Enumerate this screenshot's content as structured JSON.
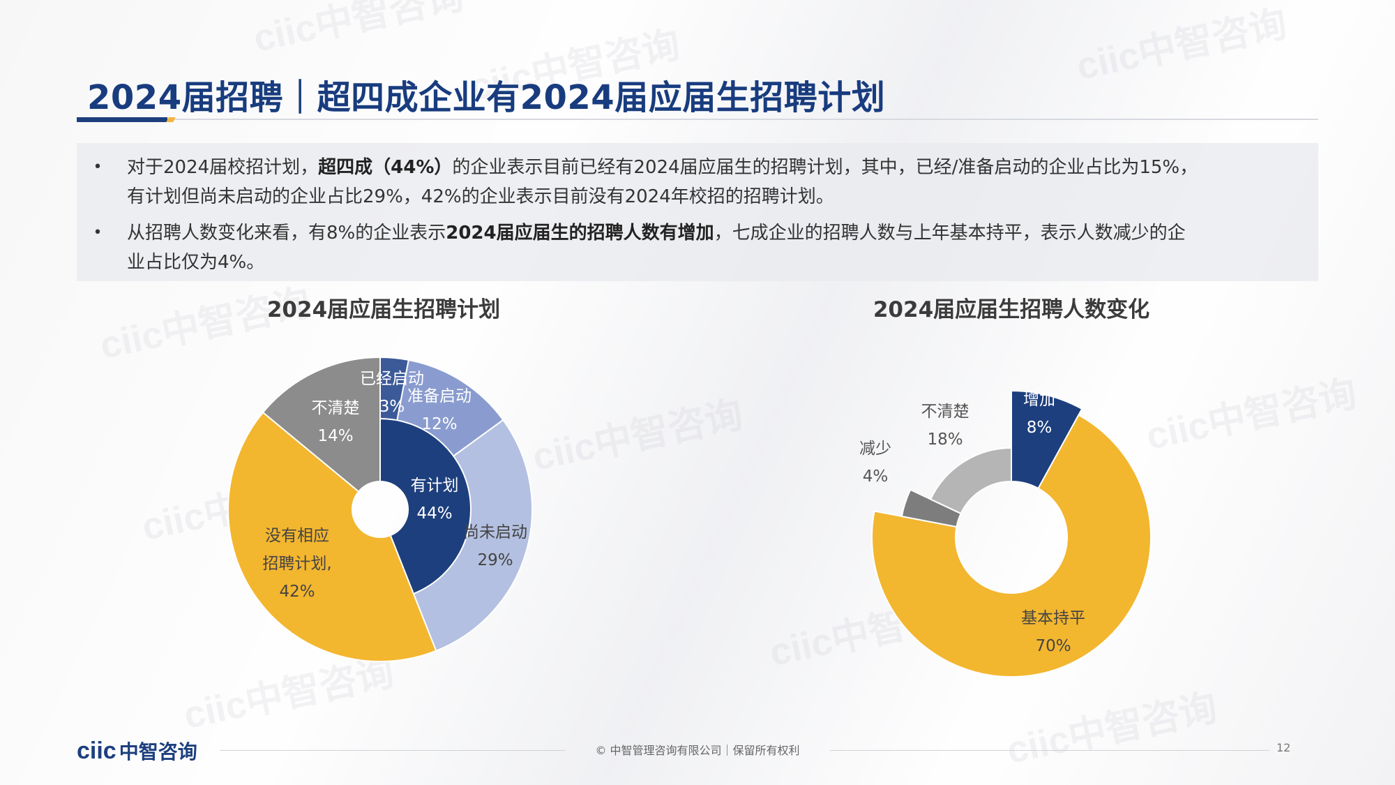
{
  "slide": {
    "title": "2024届招聘｜超四成企业有2024届应届生招聘计划",
    "bullets": [
      {
        "line1_pre": "对于2024届校招计划，",
        "line1_bold": "超四成（44%）",
        "line1_post": "的企业表示目前已经有2024届应届生的招聘计划，其中，已经/准备启动的企业占比为15%，",
        "line2": "有计划但尚未启动的企业占比29%，42%的企业表示目前没有2024年校招的招聘计划。"
      },
      {
        "line1_pre": "从招聘人数变化来看，有8%的企业表示",
        "line1_bold": "2024届应届生的招聘人数有增加",
        "line1_post": "，七成企业的招聘人数与上年基本持平，表示人数减少的企",
        "line2": "业占比仅为4%。"
      }
    ],
    "bullet_symbol": "•"
  },
  "chart_data": [
    {
      "type": "pie",
      "title": "2024届应届生招聘计划",
      "inner_ring": [
        {
          "label": "有计划",
          "value": 44,
          "color": "#1d3f7d"
        },
        {
          "label": "没有相应招聘计划",
          "value": 42,
          "color": "#f3b62f"
        },
        {
          "label": "不清楚",
          "value": 14,
          "color": "#8c8c8c"
        }
      ],
      "outer_ring": [
        {
          "label": "已经启动",
          "value": 3,
          "color": "#3c5a98"
        },
        {
          "label": "准备启动",
          "value": 12,
          "color": "#8a9ccf"
        },
        {
          "label": "尚未启动",
          "value": 29,
          "color": "#b4c0e1"
        }
      ],
      "labels": {
        "plan": [
          "有计划",
          "44%"
        ],
        "noplan": [
          "没有相应",
          "招聘计划,",
          "42%"
        ],
        "unclear": [
          "不清楚",
          "14%"
        ],
        "started": [
          "已经启动",
          "3%"
        ],
        "preparing": [
          "准备启动",
          "12%"
        ],
        "notstarted": [
          "尚未启动",
          "29%"
        ]
      }
    },
    {
      "type": "pie",
      "title": "2024届应届生招聘人数变化",
      "slices": [
        {
          "label": "增加",
          "value": 8,
          "color": "#1d3f7d"
        },
        {
          "label": "基本持平",
          "value": 70,
          "color": "#f3b62f"
        },
        {
          "label": "减少",
          "value": 4,
          "color": "#7d7d7d"
        },
        {
          "label": "不清楚",
          "value": 18,
          "color": "#b5b5b5"
        }
      ],
      "labels": {
        "increase": [
          "增加",
          "8%"
        ],
        "flat": [
          "基本持平",
          "70%"
        ],
        "decrease": [
          "减少",
          "4%"
        ],
        "unclear": [
          "不清楚",
          "18%"
        ]
      }
    }
  ],
  "footer": {
    "logo_latin": "ciic",
    "logo_cn": "中智咨询",
    "copyright": "© 中智管理咨询有限公司｜保留所有权利",
    "page": "12"
  },
  "watermark_text": "ciic中智咨询"
}
